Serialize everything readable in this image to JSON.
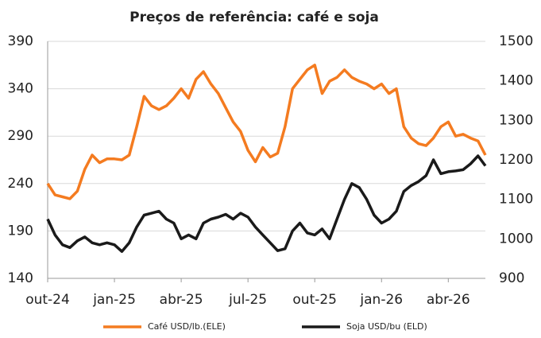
{
  "chart_data": {
    "type": "line",
    "title": "Preços de referência: café e soja",
    "categories": [
      "out-24",
      null,
      null,
      null,
      null,
      null,
      null,
      null,
      null,
      "jan-25",
      null,
      null,
      null,
      null,
      null,
      null,
      null,
      null,
      "abr-25",
      null,
      null,
      null,
      null,
      null,
      null,
      null,
      null,
      "jul-25",
      null,
      null,
      null,
      null,
      null,
      null,
      null,
      null,
      "out-25",
      null,
      null,
      null,
      null,
      null,
      null,
      null,
      null,
      "jan-26",
      null,
      null,
      null,
      null,
      null,
      null,
      null,
      null,
      "abr-26",
      null,
      null,
      null,
      null,
      null
    ],
    "series": [
      {
        "name": "Café USD/lb.(ELE)",
        "color": "#f47b20",
        "values": [
          240,
          228,
          226,
          224,
          232,
          255,
          270,
          262,
          266,
          266,
          265,
          270,
          300,
          332,
          322,
          318,
          322,
          330,
          340,
          330,
          350,
          358,
          345,
          335,
          320,
          305,
          295,
          275,
          263,
          278,
          268,
          272,
          300,
          340,
          350,
          360,
          365,
          335,
          348,
          352,
          360,
          352,
          348,
          345,
          340,
          345,
          335,
          340,
          300,
          288,
          282,
          280,
          288,
          300,
          305,
          290,
          292,
          288,
          285,
          270
        ]
      },
      {
        "name": "Soja USD/bu (ELD)",
        "color": "#1a1a1a",
        "axis": "y2",
        "values": [
          1050,
          1010,
          985,
          978,
          995,
          1005,
          990,
          985,
          990,
          985,
          968,
          990,
          1030,
          1060,
          1065,
          1070,
          1050,
          1040,
          1000,
          1010,
          1000,
          1040,
          1050,
          1055,
          1062,
          1050,
          1065,
          1055,
          1030,
          1010,
          990,
          970,
          975,
          1020,
          1040,
          1015,
          1010,
          1025,
          1000,
          1050,
          1100,
          1140,
          1130,
          1100,
          1060,
          1040,
          1050,
          1070,
          1120,
          1135,
          1145,
          1160,
          1200,
          1165,
          1170,
          1172,
          1175,
          1190,
          1210,
          1185
        ]
      }
    ],
    "ylim": [
      140,
      390
    ],
    "yticks": [
      140,
      190,
      240,
      290,
      340,
      390
    ],
    "y2lim": [
      900,
      1500
    ],
    "y2ticks": [
      900,
      1000,
      1100,
      1200,
      1300,
      1400,
      1500
    ],
    "grid": true,
    "legend": "bottom"
  }
}
